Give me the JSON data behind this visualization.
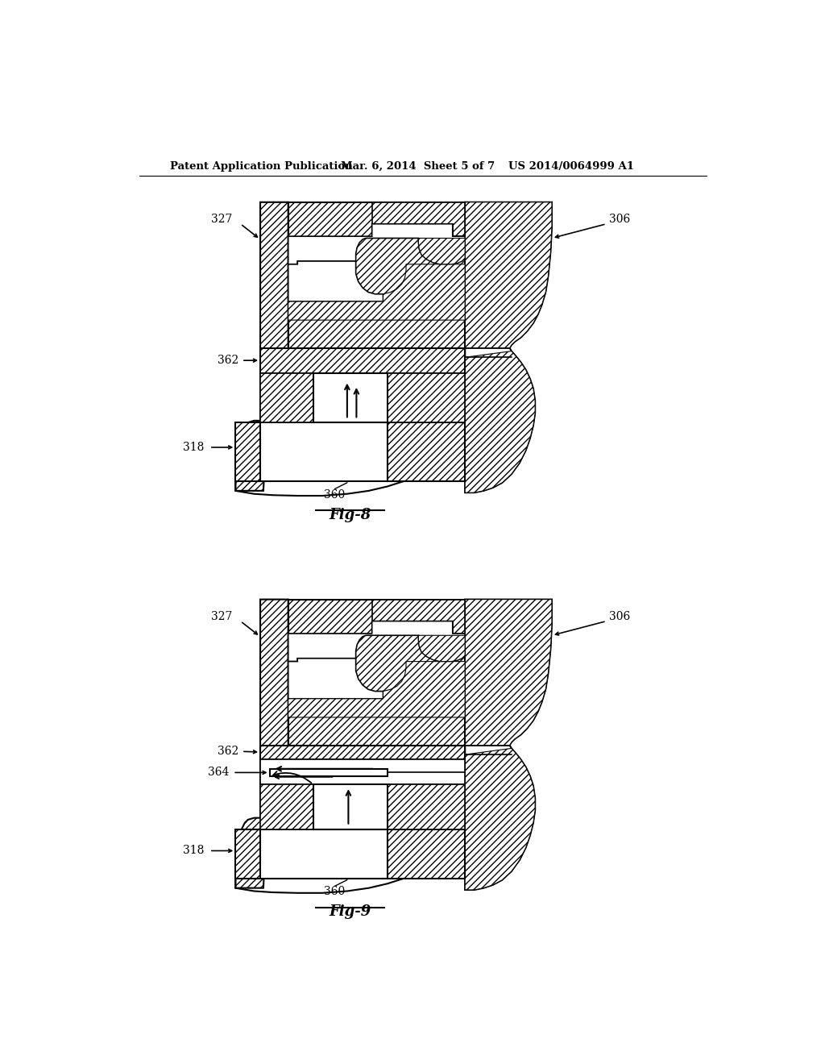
{
  "bg_color": "#ffffff",
  "header_text": "Patent Application Publication",
  "header_date": "Mar. 6, 2014  Sheet 5 of 7",
  "header_patent": "US 2014/0064999 A1",
  "fig8_label": "Fig-8",
  "fig9_label": "Fig-9"
}
